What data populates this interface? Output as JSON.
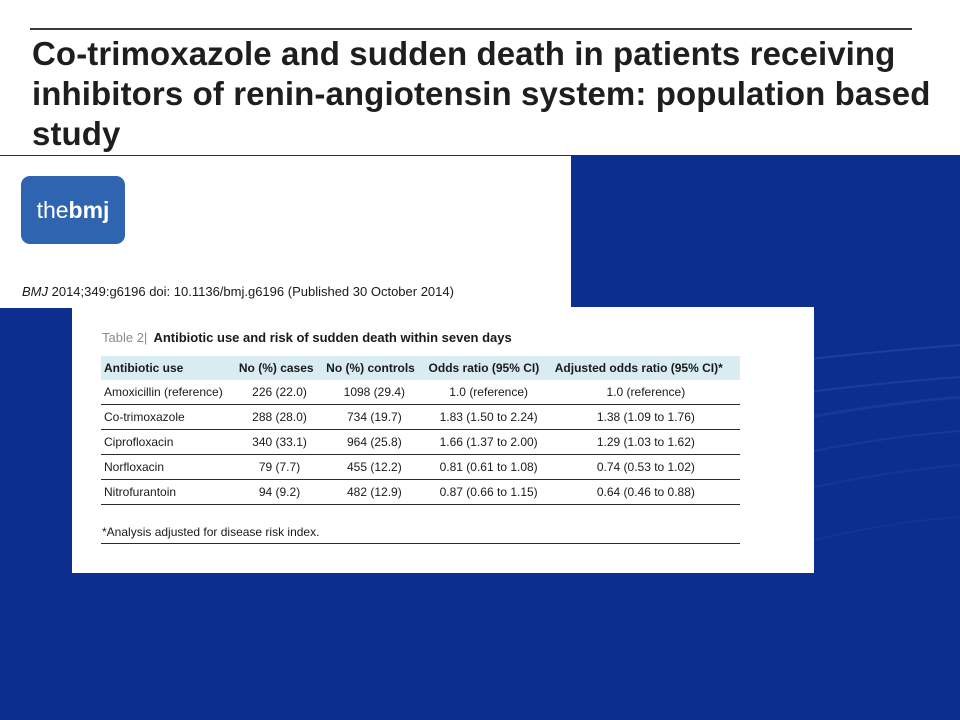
{
  "slide": {
    "title": "Co-trimoxazole and sudden death in patients receiving inhibitors of renin-angiotensin system: population based study"
  },
  "logo": {
    "the": "the",
    "bmj": "bmj"
  },
  "citation": {
    "journal": "BMJ",
    "rest": " 2014;349:g6196 doi: 10.1136/bmj.g6196 (Published 30 October 2014)"
  },
  "table": {
    "number": "Table 2",
    "separator": "|",
    "caption": "Antibiotic use and risk of sudden death within seven days",
    "headers": [
      "Antibiotic use",
      "No (%) cases",
      "No (%) controls",
      "Odds ratio (95% CI)",
      "Adjusted odds ratio (95% CI)*"
    ],
    "rows": [
      [
        "Amoxicillin (reference)",
        "226 (22.0)",
        "1098 (29.4)",
        "1.0 (reference)",
        "1.0 (reference)"
      ],
      [
        "Co-trimoxazole",
        "288 (28.0)",
        "734 (19.7)",
        "1.83 (1.50 to 2.24)",
        "1.38 (1.09 to 1.76)"
      ],
      [
        "Ciprofloxacin",
        "340 (33.1)",
        "964 (25.8)",
        "1.66 (1.37 to 2.00)",
        "1.29 (1.03 to 1.62)"
      ],
      [
        "Norfloxacin",
        "79 (7.7)",
        "455 (12.2)",
        "0.81 (0.61 to 1.08)",
        "0.74 (0.53 to 1.02)"
      ],
      [
        "Nitrofurantoin",
        "94 (9.2)",
        "482 (12.9)",
        "0.87 (0.66 to 1.15)",
        "0.64 (0.46 to 0.88)"
      ]
    ],
    "footnote": "*Analysis adjusted for disease risk index."
  },
  "colors": {
    "background_blue": "#0c2f8f",
    "logo_blue": "#2e64b0",
    "header_row": "#d8ecf1"
  }
}
